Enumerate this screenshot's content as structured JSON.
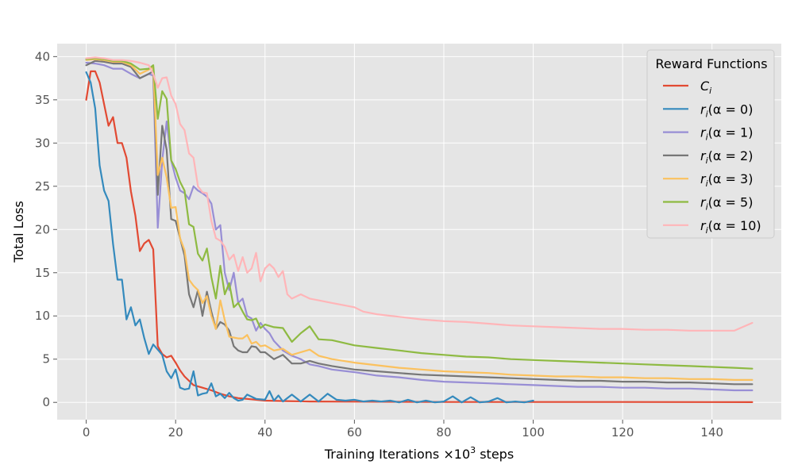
{
  "chart_data": {
    "type": "line",
    "xlabel": "Training Iterations ×10",
    "xlabel_sup": "3",
    "xlabel_suffix": " steps",
    "ylabel": "Total Loss",
    "xlim": [
      -6.5,
      155.5
    ],
    "ylim": [
      -2,
      41.5
    ],
    "xticks": [
      0,
      20,
      40,
      60,
      80,
      100,
      120,
      140
    ],
    "yticks": [
      0,
      5,
      10,
      15,
      20,
      25,
      30,
      35,
      40
    ],
    "grid": true,
    "legend": {
      "title": "Reward Functions",
      "placement": "top-right"
    },
    "series": [
      {
        "name": "C_i",
        "label_main": "C",
        "label_sub": "i",
        "label_arg": "",
        "color": "#E24A33",
        "x": [
          0,
          1,
          2,
          3,
          4,
          5,
          6,
          7,
          8,
          9,
          10,
          11,
          12,
          13,
          14,
          15,
          16,
          17,
          18,
          19,
          20,
          21,
          22,
          24,
          26,
          28,
          30,
          32,
          34,
          36,
          38,
          40,
          45,
          50,
          60,
          80,
          100,
          120,
          140,
          149
        ],
        "y": [
          35,
          38.3,
          38.3,
          37,
          34.5,
          32,
          33,
          30,
          30,
          28.3,
          24.4,
          21.6,
          17.5,
          18.4,
          18.8,
          17.7,
          6.5,
          5.6,
          5.2,
          5.4,
          4.6,
          3.7,
          3,
          2,
          1.7,
          1.4,
          1,
          0.7,
          0.5,
          0.4,
          0.3,
          0.2,
          0.15,
          0.1,
          0.08,
          0.05,
          0.05,
          0.05,
          0.04,
          0.03
        ]
      },
      {
        "name": "r_i(α = 0)",
        "label_main": "r",
        "label_sub": "i",
        "label_arg": "(α = 0)",
        "color": "#348ABD",
        "x": [
          0,
          1,
          2,
          3,
          4,
          5,
          6,
          7,
          8,
          9,
          10,
          11,
          12,
          13,
          14,
          15,
          16,
          17,
          18,
          19,
          20,
          21,
          22,
          23,
          24,
          25,
          26,
          27,
          28,
          29,
          30,
          31,
          32,
          33,
          34,
          35,
          36,
          38,
          40,
          41,
          42,
          43,
          44,
          46,
          48,
          50,
          52,
          54,
          56,
          58,
          60,
          62,
          64,
          66,
          68,
          70,
          72,
          74,
          76,
          78,
          80,
          82,
          84,
          86,
          88,
          90,
          92,
          94,
          96,
          98,
          100
        ],
        "y": [
          38.2,
          37,
          34,
          27.4,
          24.5,
          23.3,
          18.3,
          14.2,
          14.2,
          9.6,
          11,
          8.9,
          9.6,
          7.4,
          5.6,
          6.7,
          6.1,
          5.5,
          3.6,
          2.8,
          3.8,
          1.7,
          1.5,
          1.6,
          3.6,
          0.8,
          1,
          1.1,
          2.2,
          0.7,
          1,
          0.5,
          1.1,
          0.5,
          0.2,
          0.3,
          0.9,
          0.4,
          0.3,
          1.3,
          0.2,
          0.8,
          0.1,
          0.9,
          0.1,
          0.9,
          0.1,
          1,
          0.3,
          0.2,
          0.3,
          0.1,
          0.2,
          0.1,
          0.2,
          0,
          0.3,
          0,
          0.2,
          0,
          0.1,
          0.7,
          0,
          0.6,
          0,
          0.1,
          0.5,
          0,
          0.1,
          0,
          0.2
        ]
      },
      {
        "name": "r_i(α = 1)",
        "label_main": "r",
        "label_sub": "i",
        "label_arg": "(α = 1)",
        "color": "#988ED5",
        "x": [
          0,
          2,
          4,
          6,
          8,
          10,
          12,
          14,
          15,
          16,
          17,
          18,
          19,
          20,
          21,
          22,
          23,
          24,
          25,
          26,
          27,
          28,
          29,
          30,
          31,
          32,
          33,
          34,
          35,
          36,
          37,
          38,
          39,
          40,
          41,
          42,
          44,
          46,
          48,
          50,
          52,
          55,
          60,
          65,
          70,
          75,
          80,
          85,
          90,
          95,
          100,
          105,
          110,
          115,
          120,
          125,
          130,
          135,
          140,
          145,
          149
        ],
        "y": [
          39.3,
          39.2,
          39,
          38.6,
          38.6,
          38,
          37.5,
          38,
          37.8,
          20.2,
          28,
          32.5,
          28,
          26,
          24.5,
          24.2,
          23.5,
          25,
          24.5,
          24.2,
          23.8,
          23,
          20,
          20.5,
          15,
          13,
          15,
          11.5,
          12,
          10,
          9.7,
          8.3,
          9.2,
          8.5,
          8,
          7.1,
          6,
          5.4,
          5,
          4.4,
          4.2,
          3.8,
          3.5,
          3.1,
          2.9,
          2.6,
          2.4,
          2.3,
          2.2,
          2.1,
          2,
          1.9,
          1.8,
          1.8,
          1.7,
          1.7,
          1.6,
          1.6,
          1.5,
          1.4,
          1.4
        ]
      },
      {
        "name": "r_i(α = 2)",
        "label_main": "r",
        "label_sub": "i",
        "label_arg": "(α = 2)",
        "color": "#777777",
        "x": [
          0,
          2,
          4,
          6,
          8,
          10,
          12,
          14,
          15,
          16,
          17,
          18,
          19,
          20,
          21,
          22,
          23,
          24,
          25,
          26,
          27,
          28,
          29,
          30,
          31,
          32,
          33,
          34,
          35,
          36,
          37,
          38,
          39,
          40,
          42,
          44,
          46,
          48,
          50,
          52,
          55,
          60,
          65,
          70,
          75,
          80,
          85,
          90,
          95,
          100,
          105,
          110,
          115,
          120,
          125,
          130,
          135,
          140,
          145,
          149
        ],
        "y": [
          39,
          39.5,
          39.4,
          39.2,
          39.2,
          38.8,
          37.5,
          38,
          38.3,
          24,
          32,
          29.2,
          21.2,
          21,
          19,
          17,
          12.5,
          11,
          13,
          10,
          12.8,
          10.5,
          8.5,
          9.3,
          9,
          8.3,
          6.5,
          6,
          5.8,
          5.8,
          6.5,
          6.4,
          5.8,
          5.8,
          5,
          5.5,
          4.5,
          4.5,
          4.8,
          4.5,
          4.2,
          3.8,
          3.6,
          3.4,
          3.2,
          3.1,
          3,
          2.9,
          2.8,
          2.7,
          2.6,
          2.5,
          2.5,
          2.4,
          2.4,
          2.3,
          2.3,
          2.2,
          2.1,
          2.1
        ]
      },
      {
        "name": "r_i(α = 3)",
        "label_main": "r",
        "label_sub": "i",
        "label_arg": "(α = 3)",
        "color": "#FBC15E",
        "x": [
          0,
          2,
          4,
          6,
          8,
          10,
          12,
          14,
          15,
          16,
          17,
          18,
          19,
          20,
          21,
          22,
          23,
          24,
          25,
          26,
          27,
          28,
          29,
          30,
          31,
          32,
          33,
          34,
          35,
          36,
          37,
          38,
          39,
          40,
          42,
          44,
          46,
          48,
          50,
          52,
          55,
          60,
          65,
          70,
          75,
          80,
          85,
          90,
          95,
          100,
          105,
          110,
          115,
          120,
          125,
          130,
          135,
          140,
          145,
          149
        ],
        "y": [
          39.6,
          39.7,
          39.6,
          39.4,
          39.4,
          39,
          38,
          38.5,
          38.8,
          26.3,
          28.3,
          26,
          22.5,
          22.6,
          19,
          17.6,
          14.2,
          13.5,
          13,
          11.5,
          12.3,
          10,
          8.5,
          11.8,
          9.5,
          7.6,
          7.5,
          7.4,
          7.4,
          7.8,
          6.8,
          7,
          6.5,
          6.6,
          6,
          6.2,
          5.5,
          5.8,
          6.1,
          5.4,
          5,
          4.6,
          4.3,
          4,
          3.8,
          3.6,
          3.5,
          3.4,
          3.2,
          3.1,
          3,
          3,
          2.9,
          2.9,
          2.8,
          2.8,
          2.7,
          2.7,
          2.6,
          2.6
        ]
      },
      {
        "name": "r_i(α = 5)",
        "label_main": "r",
        "label_sub": "i",
        "label_arg": "(α = 5)",
        "color": "#8EBA42",
        "x": [
          0,
          2,
          4,
          6,
          8,
          10,
          12,
          14,
          15,
          16,
          17,
          18,
          19,
          20,
          21,
          22,
          23,
          24,
          25,
          26,
          27,
          28,
          29,
          30,
          31,
          32,
          33,
          34,
          35,
          36,
          37,
          38,
          39,
          40,
          42,
          44,
          46,
          48,
          50,
          52,
          55,
          60,
          65,
          70,
          75,
          80,
          85,
          90,
          95,
          100,
          105,
          110,
          115,
          120,
          125,
          130,
          135,
          140,
          145,
          149
        ],
        "y": [
          39.7,
          39.8,
          39.7,
          39.5,
          39.5,
          39.2,
          38.5,
          38.6,
          39,
          32.8,
          36,
          35.1,
          28,
          27,
          25.5,
          24.5,
          20.6,
          20.3,
          17.2,
          16.4,
          17.8,
          14.5,
          12,
          15.8,
          12.5,
          13.8,
          11,
          11.5,
          10.5,
          9.6,
          9.5,
          9.7,
          8.6,
          9,
          8.7,
          8.6,
          7,
          8,
          8.8,
          7.3,
          7.2,
          6.6,
          6.3,
          6,
          5.7,
          5.5,
          5.3,
          5.2,
          5,
          4.9,
          4.8,
          4.7,
          4.6,
          4.5,
          4.4,
          4.3,
          4.2,
          4.1,
          4,
          3.9
        ]
      },
      {
        "name": "r_i(α = 10)",
        "label_main": "r",
        "label_sub": "i",
        "label_arg": "(α = 10)",
        "color": "#FFB5B8",
        "x": [
          0,
          2,
          4,
          6,
          8,
          10,
          12,
          14,
          15,
          16,
          17,
          18,
          19,
          20,
          21,
          22,
          23,
          24,
          25,
          26,
          27,
          28,
          29,
          30,
          31,
          32,
          33,
          34,
          35,
          36,
          37,
          38,
          39,
          40,
          41,
          42,
          43,
          44,
          45,
          46,
          48,
          50,
          52,
          55,
          60,
          62,
          65,
          70,
          75,
          80,
          85,
          90,
          95,
          100,
          105,
          110,
          115,
          120,
          125,
          130,
          135,
          140,
          145,
          149
        ],
        "y": [
          39.8,
          39.9,
          39.8,
          39.6,
          39.6,
          39.5,
          39.3,
          39,
          38,
          36.4,
          37.5,
          37.6,
          35.5,
          34.5,
          32.2,
          31.5,
          28.8,
          28.3,
          25,
          24.3,
          24.2,
          21,
          19,
          18.7,
          18,
          16.5,
          17.1,
          15.2,
          16.8,
          15,
          15.5,
          17.3,
          14,
          15.5,
          16,
          15.5,
          14.5,
          15.2,
          12.5,
          12,
          12.5,
          12,
          11.8,
          11.5,
          11,
          10.5,
          10.2,
          9.9,
          9.6,
          9.4,
          9.3,
          9.1,
          8.9,
          8.8,
          8.7,
          8.6,
          8.5,
          8.5,
          8.4,
          8.4,
          8.3,
          8.3,
          8.3,
          9.2
        ]
      }
    ]
  }
}
